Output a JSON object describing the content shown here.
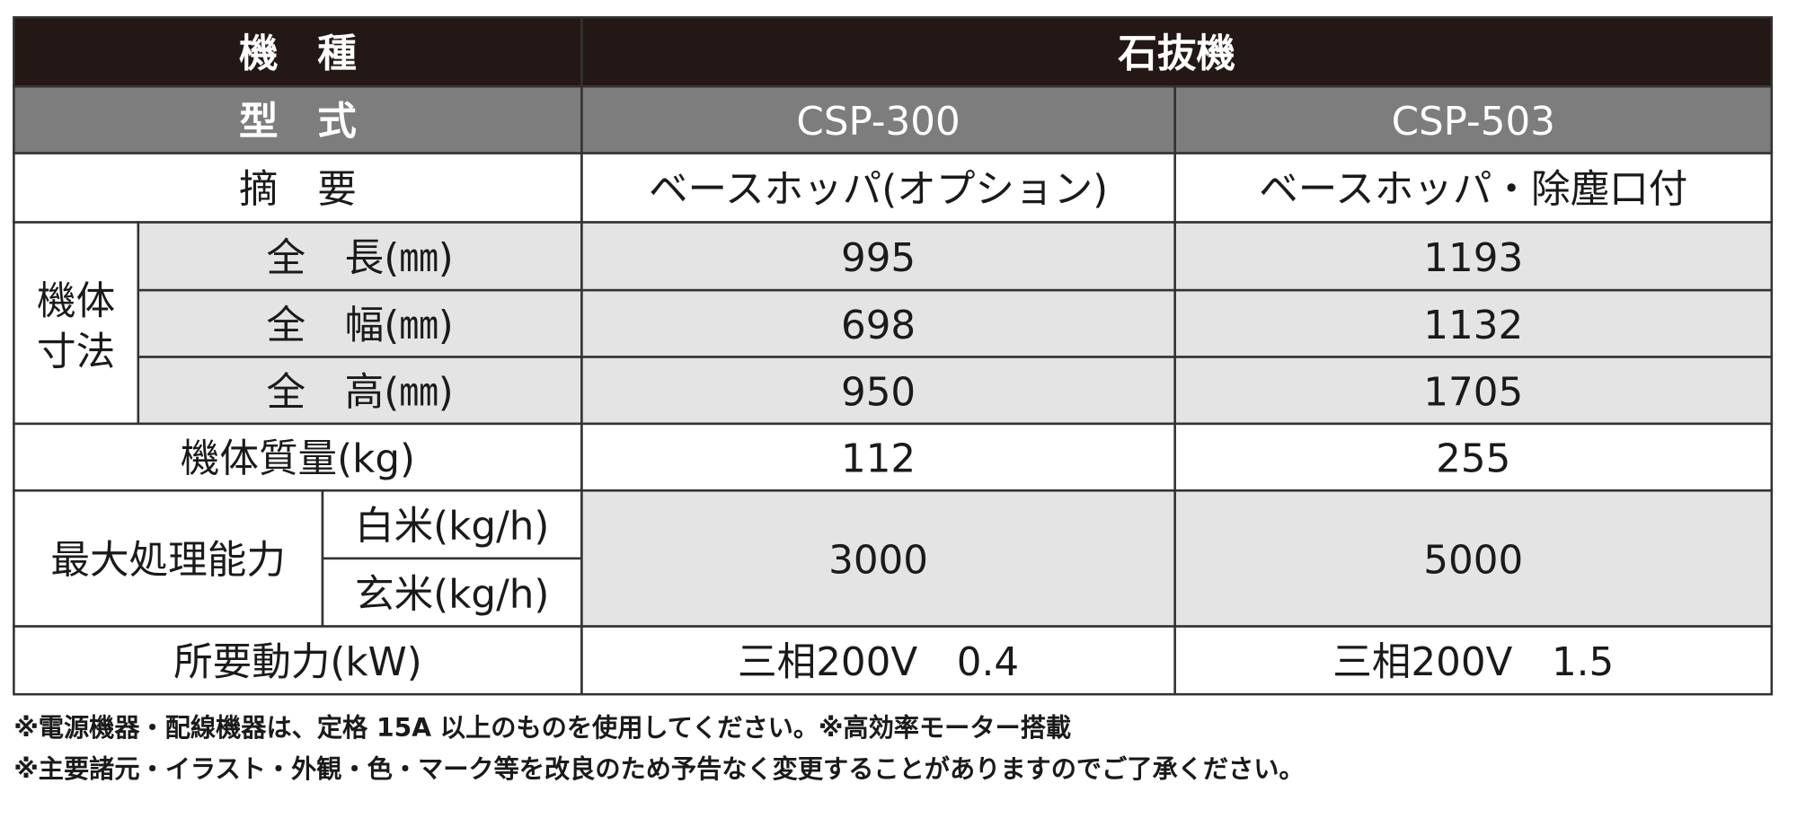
{
  "table": {
    "header": {
      "label": "機　種",
      "value": "石抜機"
    },
    "models": {
      "label": "型　式",
      "values": [
        "CSP-300",
        "CSP-503"
      ]
    },
    "summary": {
      "label": "摘　要",
      "values": [
        "ベースホッパ(オプション)",
        "ベースホッパ・除塵口付"
      ]
    },
    "dimensions": {
      "label": "機体寸法",
      "rows": [
        {
          "label": "全　長(㎜)",
          "values": [
            995,
            1193
          ]
        },
        {
          "label": "全　幅(㎜)",
          "values": [
            698,
            1132
          ]
        },
        {
          "label": "全　高(㎜)",
          "values": [
            950,
            1705
          ]
        }
      ]
    },
    "mass": {
      "label": "機体質量(kg)",
      "values": [
        112,
        255
      ]
    },
    "capacity": {
      "label": "最大処理能力",
      "sublabels": [
        "白米(kg/h)",
        "玄米(kg/h)"
      ],
      "values": [
        3000,
        5000
      ]
    },
    "power": {
      "label": "所要動力(kW)",
      "values": [
        "三相200V　0.4",
        "三相200V　1.5"
      ]
    }
  },
  "notes": [
    "※電源機器・配線機器は、定格 15A 以上のものを使用してください。※高効率モーター搭載",
    "※主要諸元・イラスト・外観・色・マーク等を改良のため予告なく変更することがありますのでご了承ください。"
  ]
}
